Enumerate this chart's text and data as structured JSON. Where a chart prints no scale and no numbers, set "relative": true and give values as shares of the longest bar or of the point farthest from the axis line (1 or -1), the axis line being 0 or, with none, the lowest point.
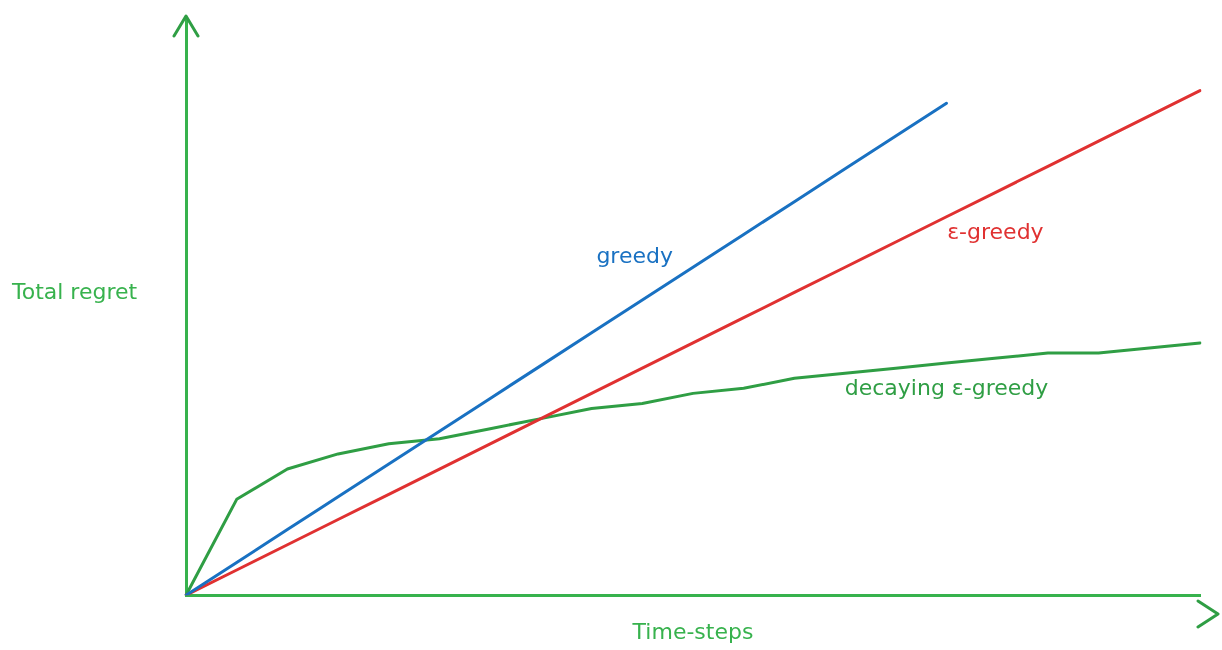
{
  "chart_data": {
    "type": "line",
    "relative": true,
    "xlabel": "Time-steps",
    "ylabel": "Total regret",
    "marker": "none",
    "grid": false,
    "legend": false,
    "categories": [
      null,
      null,
      null,
      null,
      null,
      null,
      null,
      null,
      null,
      null,
      null,
      null,
      null,
      null,
      null,
      null,
      null,
      null,
      null,
      null,
      null
    ],
    "series": [
      {
        "name": "greedy",
        "color": "#1971c2",
        "values": [
          0,
          0.065,
          0.13,
          0.195,
          0.26,
          0.325,
          0.39,
          0.455,
          0.52,
          0.585,
          0.65,
          0.715,
          0.78,
          0.845,
          0.91,
          0.975,
          null,
          null,
          null,
          null,
          null
        ]
      },
      {
        "name": "ε-greedy",
        "color": "#e03131",
        "values": [
          0,
          0.05,
          0.1,
          0.15,
          0.2,
          0.25,
          0.3,
          0.35,
          0.4,
          0.45,
          0.5,
          0.55,
          0.6,
          0.65,
          0.7,
          0.75,
          0.8,
          0.85,
          0.9,
          0.95,
          1
        ]
      },
      {
        "name": "decaying ε-greedy",
        "color": "#2f9e44",
        "values": [
          0,
          0.19,
          0.25,
          0.28,
          0.3,
          0.31,
          0.33,
          0.35,
          0.37,
          0.38,
          0.4,
          0.41,
          0.43,
          0.44,
          0.45,
          0.46,
          0.47,
          0.48,
          0.48,
          0.49,
          0.5
        ]
      }
    ]
  }
}
